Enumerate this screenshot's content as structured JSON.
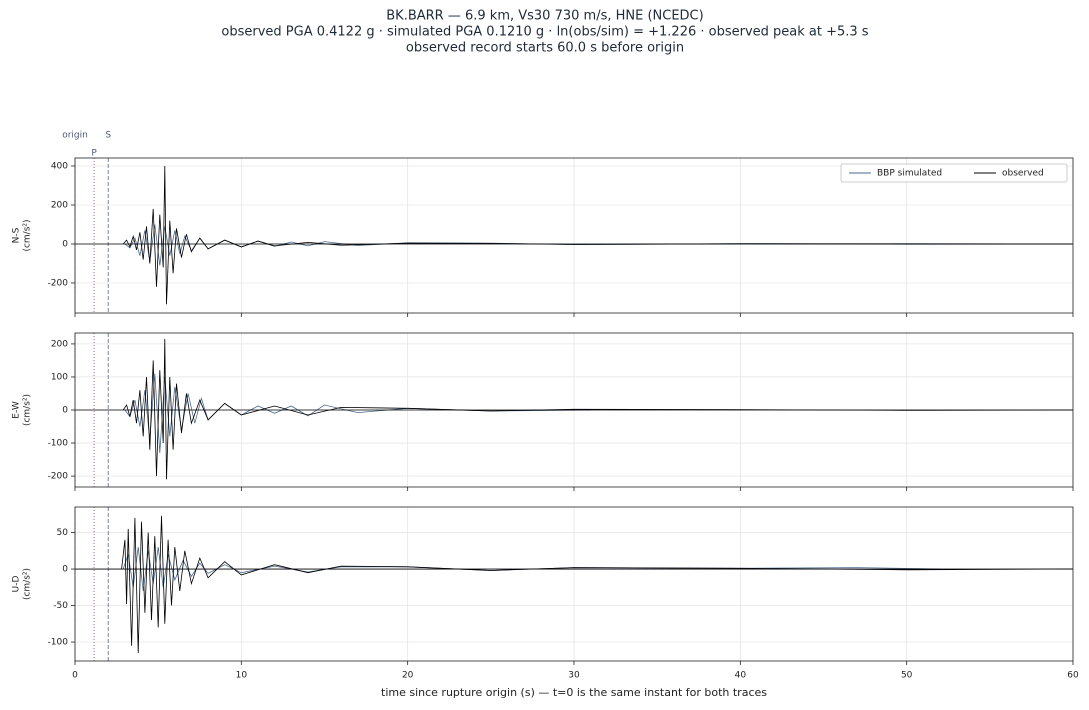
{
  "chart_data": [
    {
      "type": "line",
      "title": [
        "BK.BARR  —  6.9 km, Vs30 730 m/s, HNE (NCEDC)",
        "observed PGA 0.4122 g   ·   simulated PGA 0.1210 g   ·   ln(obs/sim) = +1.226   ·   observed peak at +5.3 s",
        "observed record starts 60.0 s before origin"
      ],
      "ylabel": "N-S",
      "yunit": "(cm/s²)",
      "xlim": [
        0,
        60
      ],
      "xticks": [
        0,
        10,
        20,
        30,
        40,
        50,
        60
      ],
      "ylim": [
        -354,
        441
      ],
      "yticks": [
        -200,
        0,
        200,
        400
      ],
      "grid": true,
      "legend": "upper right",
      "markers": [
        {
          "label": "origin",
          "value": 0,
          "color": "#c0a0b0",
          "dash": "1,2"
        },
        {
          "label": "P",
          "value": 1.15,
          "color": "#a07090",
          "dash": "1,2"
        },
        {
          "label": "S",
          "value": 2.0,
          "color": "#8090b0",
          "dash": "4,2"
        }
      ],
      "series": [
        {
          "name": "BBP simulated",
          "color": "#4a6a8f",
          "x": [
            3,
            3.3,
            3.6,
            3.9,
            4.2,
            4.5,
            4.8,
            5.1,
            5.4,
            5.7,
            6,
            6.3,
            6.6,
            7,
            7.5,
            8,
            9,
            10,
            11,
            12,
            13,
            14,
            15,
            17,
            20,
            25,
            30,
            40,
            50,
            60
          ],
          "values": [
            0,
            -20,
            30,
            -60,
            70,
            -90,
            100,
            -110,
            90,
            -60,
            70,
            -50,
            40,
            -35,
            30,
            -25,
            20,
            -15,
            15,
            -12,
            10,
            -10,
            12,
            -8,
            6,
            4,
            -3,
            2,
            -1,
            0
          ]
        },
        {
          "name": "observed",
          "color": "#000000",
          "x": [
            2.9,
            3.1,
            3.3,
            3.5,
            3.7,
            3.9,
            4.1,
            4.3,
            4.5,
            4.7,
            4.9,
            5.1,
            5.3,
            5.4,
            5.5,
            5.7,
            5.9,
            6.1,
            6.4,
            6.7,
            7,
            7.5,
            8,
            9,
            10,
            11,
            12,
            14,
            16,
            20,
            25,
            30,
            40,
            50,
            60
          ],
          "values": [
            0,
            20,
            -15,
            40,
            -30,
            60,
            -80,
            90,
            -100,
            180,
            -220,
            150,
            -120,
            400,
            -310,
            120,
            -150,
            80,
            -70,
            50,
            -40,
            30,
            -25,
            20,
            -15,
            15,
            -10,
            8,
            -6,
            4,
            3,
            -2,
            1,
            1,
            0
          ]
        }
      ]
    },
    {
      "type": "line",
      "ylabel": "E-W",
      "yunit": "(cm/s²)",
      "xlim": [
        0,
        60
      ],
      "xticks": [
        0,
        10,
        20,
        30,
        40,
        50,
        60
      ],
      "ylim": [
        -233,
        233
      ],
      "yticks": [
        -200,
        -100,
        0,
        100,
        200
      ],
      "grid": true,
      "series": [
        {
          "color": "#4a6a8f",
          "x": [
            3,
            3.3,
            3.6,
            3.9,
            4.2,
            4.5,
            4.8,
            5.1,
            5.4,
            5.7,
            6,
            6.4,
            6.8,
            7.2,
            7.6,
            8,
            9,
            10,
            11,
            12,
            13,
            14,
            15,
            17,
            20,
            25,
            31
          ],
          "values": [
            0,
            -20,
            30,
            -50,
            60,
            -90,
            110,
            -130,
            100,
            -80,
            70,
            -60,
            50,
            -40,
            35,
            -30,
            20,
            -15,
            12,
            -10,
            12,
            -18,
            15,
            -8,
            5,
            -3,
            0
          ]
        },
        {
          "color": "#000000",
          "x": [
            2.9,
            3.1,
            3.3,
            3.5,
            3.7,
            3.9,
            4.1,
            4.3,
            4.5,
            4.7,
            4.9,
            5.1,
            5.3,
            5.4,
            5.5,
            5.7,
            5.9,
            6.1,
            6.4,
            6.7,
            7,
            7.5,
            8,
            9,
            10,
            12,
            14,
            16,
            20,
            25,
            30,
            40,
            50,
            60
          ],
          "values": [
            0,
            15,
            -20,
            30,
            -40,
            60,
            -80,
            100,
            -120,
            150,
            -200,
            120,
            -100,
            215,
            -210,
            100,
            -120,
            80,
            -70,
            50,
            -40,
            30,
            -30,
            20,
            -15,
            12,
            -15,
            8,
            5,
            -3,
            2,
            1,
            -1,
            0
          ]
        }
      ]
    },
    {
      "type": "line",
      "ylabel": "U-D",
      "yunit": "(cm/s²)",
      "xlabel": "time since rupture origin (s)   —   t=0 is the same instant for both traces",
      "xlim": [
        0,
        60
      ],
      "xticks": [
        0,
        10,
        20,
        30,
        40,
        50,
        60
      ],
      "ylim": [
        -126,
        85
      ],
      "yticks": [
        -100,
        -50,
        0,
        50
      ],
      "grid": true,
      "series": [
        {
          "color": "#4a6a8f",
          "x": [
            2.9,
            3.2,
            3.5,
            3.8,
            4.1,
            4.4,
            4.7,
            5,
            5.3,
            5.6,
            6,
            6.5,
            7,
            7.5,
            8,
            9,
            10,
            12,
            14,
            16,
            20,
            25,
            30,
            40,
            47,
            52
          ],
          "values": [
            0,
            20,
            -25,
            30,
            -30,
            25,
            -20,
            30,
            -25,
            20,
            -15,
            12,
            -10,
            8,
            -6,
            6,
            -5,
            4,
            -4,
            3,
            3,
            -2,
            2,
            1,
            2,
            0
          ]
        },
        {
          "color": "#000000",
          "x": [
            2.8,
            3,
            3.1,
            3.2,
            3.4,
            3.6,
            3.8,
            4,
            4.2,
            4.4,
            4.6,
            4.8,
            5,
            5.2,
            5.4,
            5.6,
            5.8,
            6,
            6.3,
            6.6,
            7,
            7.5,
            8,
            9,
            10,
            12,
            14,
            16,
            20,
            25,
            30,
            40,
            50,
            60
          ],
          "values": [
            0,
            40,
            -48,
            55,
            -105,
            70,
            -115,
            65,
            -60,
            50,
            -70,
            45,
            -80,
            73,
            -75,
            40,
            -50,
            30,
            -30,
            25,
            -20,
            15,
            -12,
            10,
            -8,
            6,
            -5,
            4,
            3,
            -2,
            2,
            1,
            -1,
            0
          ]
        }
      ]
    }
  ]
}
